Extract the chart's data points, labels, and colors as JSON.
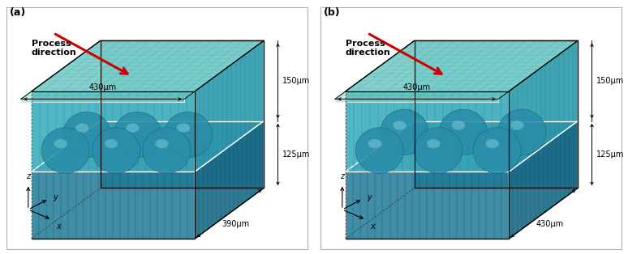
{
  "fig_width": 7.74,
  "fig_height": 3.14,
  "dpi": 100,
  "bg_color": "#ffffff",
  "panel_a_label": "(a)",
  "panel_b_label": "(b)",
  "process_direction_text": "Process\ndirection",
  "dim_430_top": "430μm",
  "dim_150": "150μm",
  "dim_125": "125μm",
  "dim_390": "390μm",
  "dim_430_bottom": "430μm",
  "color_top_face": "#82d8c8",
  "color_sphere_layer_front": "#3aadbb",
  "color_sphere_layer_right": "#2e9aaa",
  "color_sphere_layer_back": "#3aadbb",
  "color_substrate_front": "#1e7a96",
  "color_substrate_right": "#186b85",
  "color_substrate_back": "#1e7a96",
  "color_substrate_top": "#2a8faa",
  "color_sphere": "#2a8daa",
  "color_outline_white": "#ffffff",
  "color_box_edge": "#000000",
  "color_arrow": "#cc0000",
  "font_size_label": 9,
  "font_size_dim": 7,
  "font_size_axis": 7,
  "font_size_proc": 8
}
